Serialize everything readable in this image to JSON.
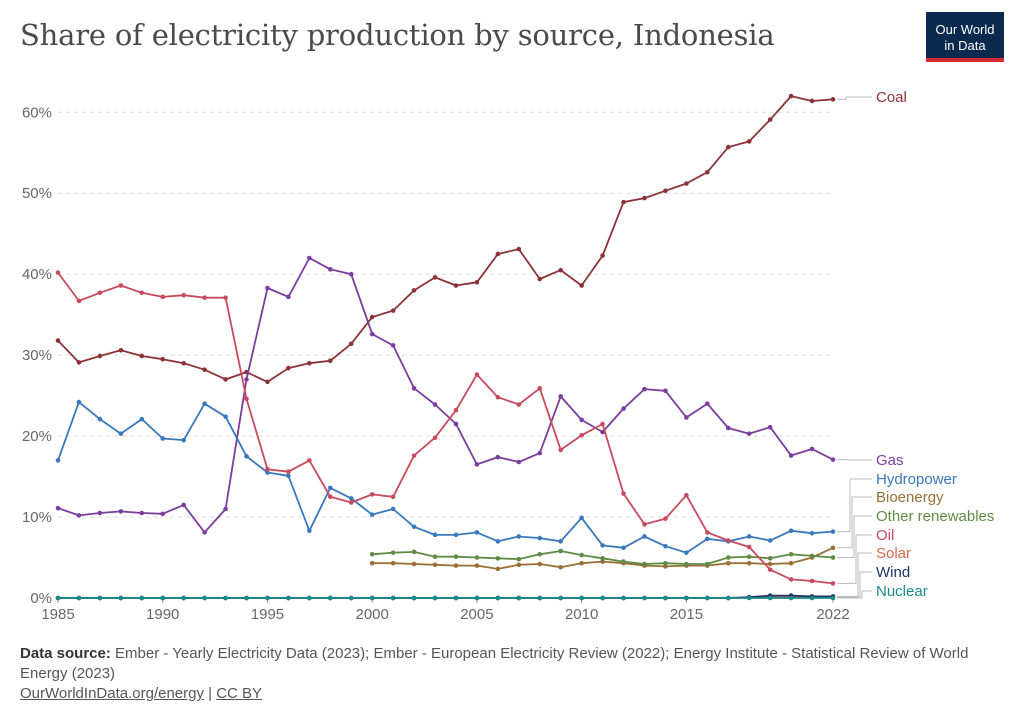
{
  "header": {
    "title": "Share of electricity production by source, Indonesia",
    "logo_line1": "Our World",
    "logo_line2": "in Data"
  },
  "footer": {
    "source_label": "Data source:",
    "source_text": "Ember - Yearly Electricity Data (2023); Ember - European Electricity Review (2022); Energy Institute - Statistical Review of World Energy (2023)",
    "link_text": "OurWorldInData.org/energy",
    "separator": " | ",
    "license": "CC BY"
  },
  "chart_data": {
    "type": "line",
    "title": "Share of electricity production by source, Indonesia",
    "x": [
      1985,
      1986,
      1987,
      1988,
      1989,
      1990,
      1991,
      1992,
      1993,
      1994,
      1995,
      1996,
      1997,
      1998,
      1999,
      2000,
      2001,
      2002,
      2003,
      2004,
      2005,
      2006,
      2007,
      2008,
      2009,
      2010,
      2011,
      2012,
      2013,
      2014,
      2015,
      2016,
      2017,
      2018,
      2019,
      2020,
      2021,
      2022
    ],
    "x_ticks": [
      1985,
      1990,
      1995,
      2000,
      2005,
      2010,
      2015,
      2022
    ],
    "y_ticks": [
      0,
      10,
      20,
      30,
      40,
      50,
      60
    ],
    "y_tick_labels": [
      "0%",
      "10%",
      "20%",
      "30%",
      "40%",
      "50%",
      "60%"
    ],
    "ylim": [
      0,
      63
    ],
    "xlim": [
      1985,
      2022
    ],
    "grid": "horizontal dashed",
    "legend": "right, labels at line ends",
    "series": [
      {
        "name": "Coal",
        "color": "#8c3338",
        "values": [
          31.8,
          29.1,
          29.9,
          30.6,
          29.9,
          29.5,
          29.0,
          28.2,
          27.0,
          27.9,
          26.7,
          28.4,
          29.0,
          29.3,
          31.4,
          34.7,
          35.5,
          38.0,
          39.6,
          38.6,
          39.0,
          42.5,
          43.1,
          39.4,
          40.5,
          38.6,
          42.3,
          48.9,
          49.4,
          50.3,
          51.2,
          52.6,
          55.7,
          56.4,
          59.1,
          62.0,
          61.4,
          61.6
        ]
      },
      {
        "name": "Gas",
        "color": "#7a3e9d",
        "values": [
          11.1,
          10.2,
          10.5,
          10.7,
          10.5,
          10.4,
          11.5,
          8.1,
          11.0,
          27.0,
          38.3,
          37.2,
          42.0,
          40.6,
          40.0,
          32.6,
          31.2,
          25.9,
          23.9,
          21.5,
          16.5,
          17.4,
          16.8,
          17.9,
          24.9,
          22.0,
          20.5,
          23.4,
          25.8,
          25.6,
          22.3,
          24.0,
          21.0,
          20.3,
          21.1,
          17.6,
          18.4,
          17.1
        ]
      },
      {
        "name": "Hydropower",
        "color": "#3a78bd",
        "values": [
          17.0,
          24.2,
          22.1,
          20.3,
          22.1,
          19.7,
          19.5,
          24.0,
          22.4,
          17.5,
          15.5,
          15.1,
          8.3,
          13.6,
          12.3,
          10.3,
          11.0,
          8.8,
          7.8,
          7.8,
          8.1,
          7.0,
          7.6,
          7.4,
          7.0,
          9.9,
          6.5,
          6.2,
          7.6,
          6.4,
          5.6,
          7.3,
          7.0,
          7.6,
          7.1,
          8.3,
          8.0,
          8.2
        ]
      },
      {
        "name": "Bioenergy",
        "color": "#9a6f36",
        "values": [
          null,
          null,
          null,
          null,
          null,
          null,
          null,
          null,
          null,
          null,
          null,
          null,
          null,
          null,
          null,
          4.3,
          4.3,
          4.2,
          4.1,
          4.0,
          4.0,
          3.6,
          4.1,
          4.2,
          3.8,
          4.3,
          4.5,
          4.3,
          4.0,
          3.9,
          4.0,
          4.0,
          4.3,
          4.3,
          4.2,
          4.3,
          5.0,
          6.2
        ]
      },
      {
        "name": "Other renewables",
        "color": "#5e8c45",
        "values": [
          null,
          null,
          null,
          null,
          null,
          null,
          null,
          null,
          null,
          null,
          null,
          null,
          null,
          null,
          null,
          5.4,
          5.6,
          5.7,
          5.1,
          5.1,
          5.0,
          4.9,
          4.8,
          5.4,
          5.8,
          5.3,
          4.9,
          4.5,
          4.2,
          4.3,
          4.2,
          4.2,
          5.0,
          5.1,
          4.9,
          5.4,
          5.2,
          5.0
        ]
      },
      {
        "name": "Oil",
        "color": "#c74b5d",
        "values": [
          40.2,
          36.7,
          37.7,
          38.6,
          37.7,
          37.2,
          37.4,
          37.1,
          37.1,
          24.6,
          15.9,
          15.6,
          17.0,
          12.5,
          11.8,
          12.8,
          12.5,
          17.6,
          19.8,
          23.2,
          27.6,
          24.8,
          23.9,
          25.9,
          18.3,
          20.1,
          21.5,
          12.9,
          9.1,
          9.8,
          12.7,
          8.1,
          7.1,
          6.3,
          3.5,
          2.3,
          2.1,
          1.8
        ]
      },
      {
        "name": "Solar",
        "color": "#d66a4e",
        "values": [
          0,
          0,
          0,
          0,
          0,
          0,
          0,
          0,
          0,
          0,
          0,
          0,
          0,
          0,
          0,
          0,
          0,
          0,
          0,
          0,
          0,
          0,
          0,
          0,
          0,
          0,
          0,
          0,
          0,
          0,
          0,
          0,
          0,
          0.1,
          0.1,
          0.1,
          0.1,
          0.1
        ]
      },
      {
        "name": "Wind",
        "color": "#1d3566",
        "values": [
          0,
          0,
          0,
          0,
          0,
          0,
          0,
          0,
          0,
          0,
          0,
          0,
          0,
          0,
          0,
          0,
          0,
          0,
          0,
          0,
          0,
          0,
          0,
          0,
          0,
          0,
          0,
          0,
          0,
          0,
          0,
          0,
          0,
          0.1,
          0.3,
          0.3,
          0.2,
          0.2
        ]
      },
      {
        "name": "Nuclear",
        "color": "#1a8a8a",
        "values": [
          0,
          0,
          0,
          0,
          0,
          0,
          0,
          0,
          0,
          0,
          0,
          0,
          0,
          0,
          0,
          0,
          0,
          0,
          0,
          0,
          0,
          0,
          0,
          0,
          0,
          0,
          0,
          0,
          0,
          0,
          0,
          0,
          0,
          0,
          0,
          0,
          0,
          0
        ]
      }
    ]
  }
}
